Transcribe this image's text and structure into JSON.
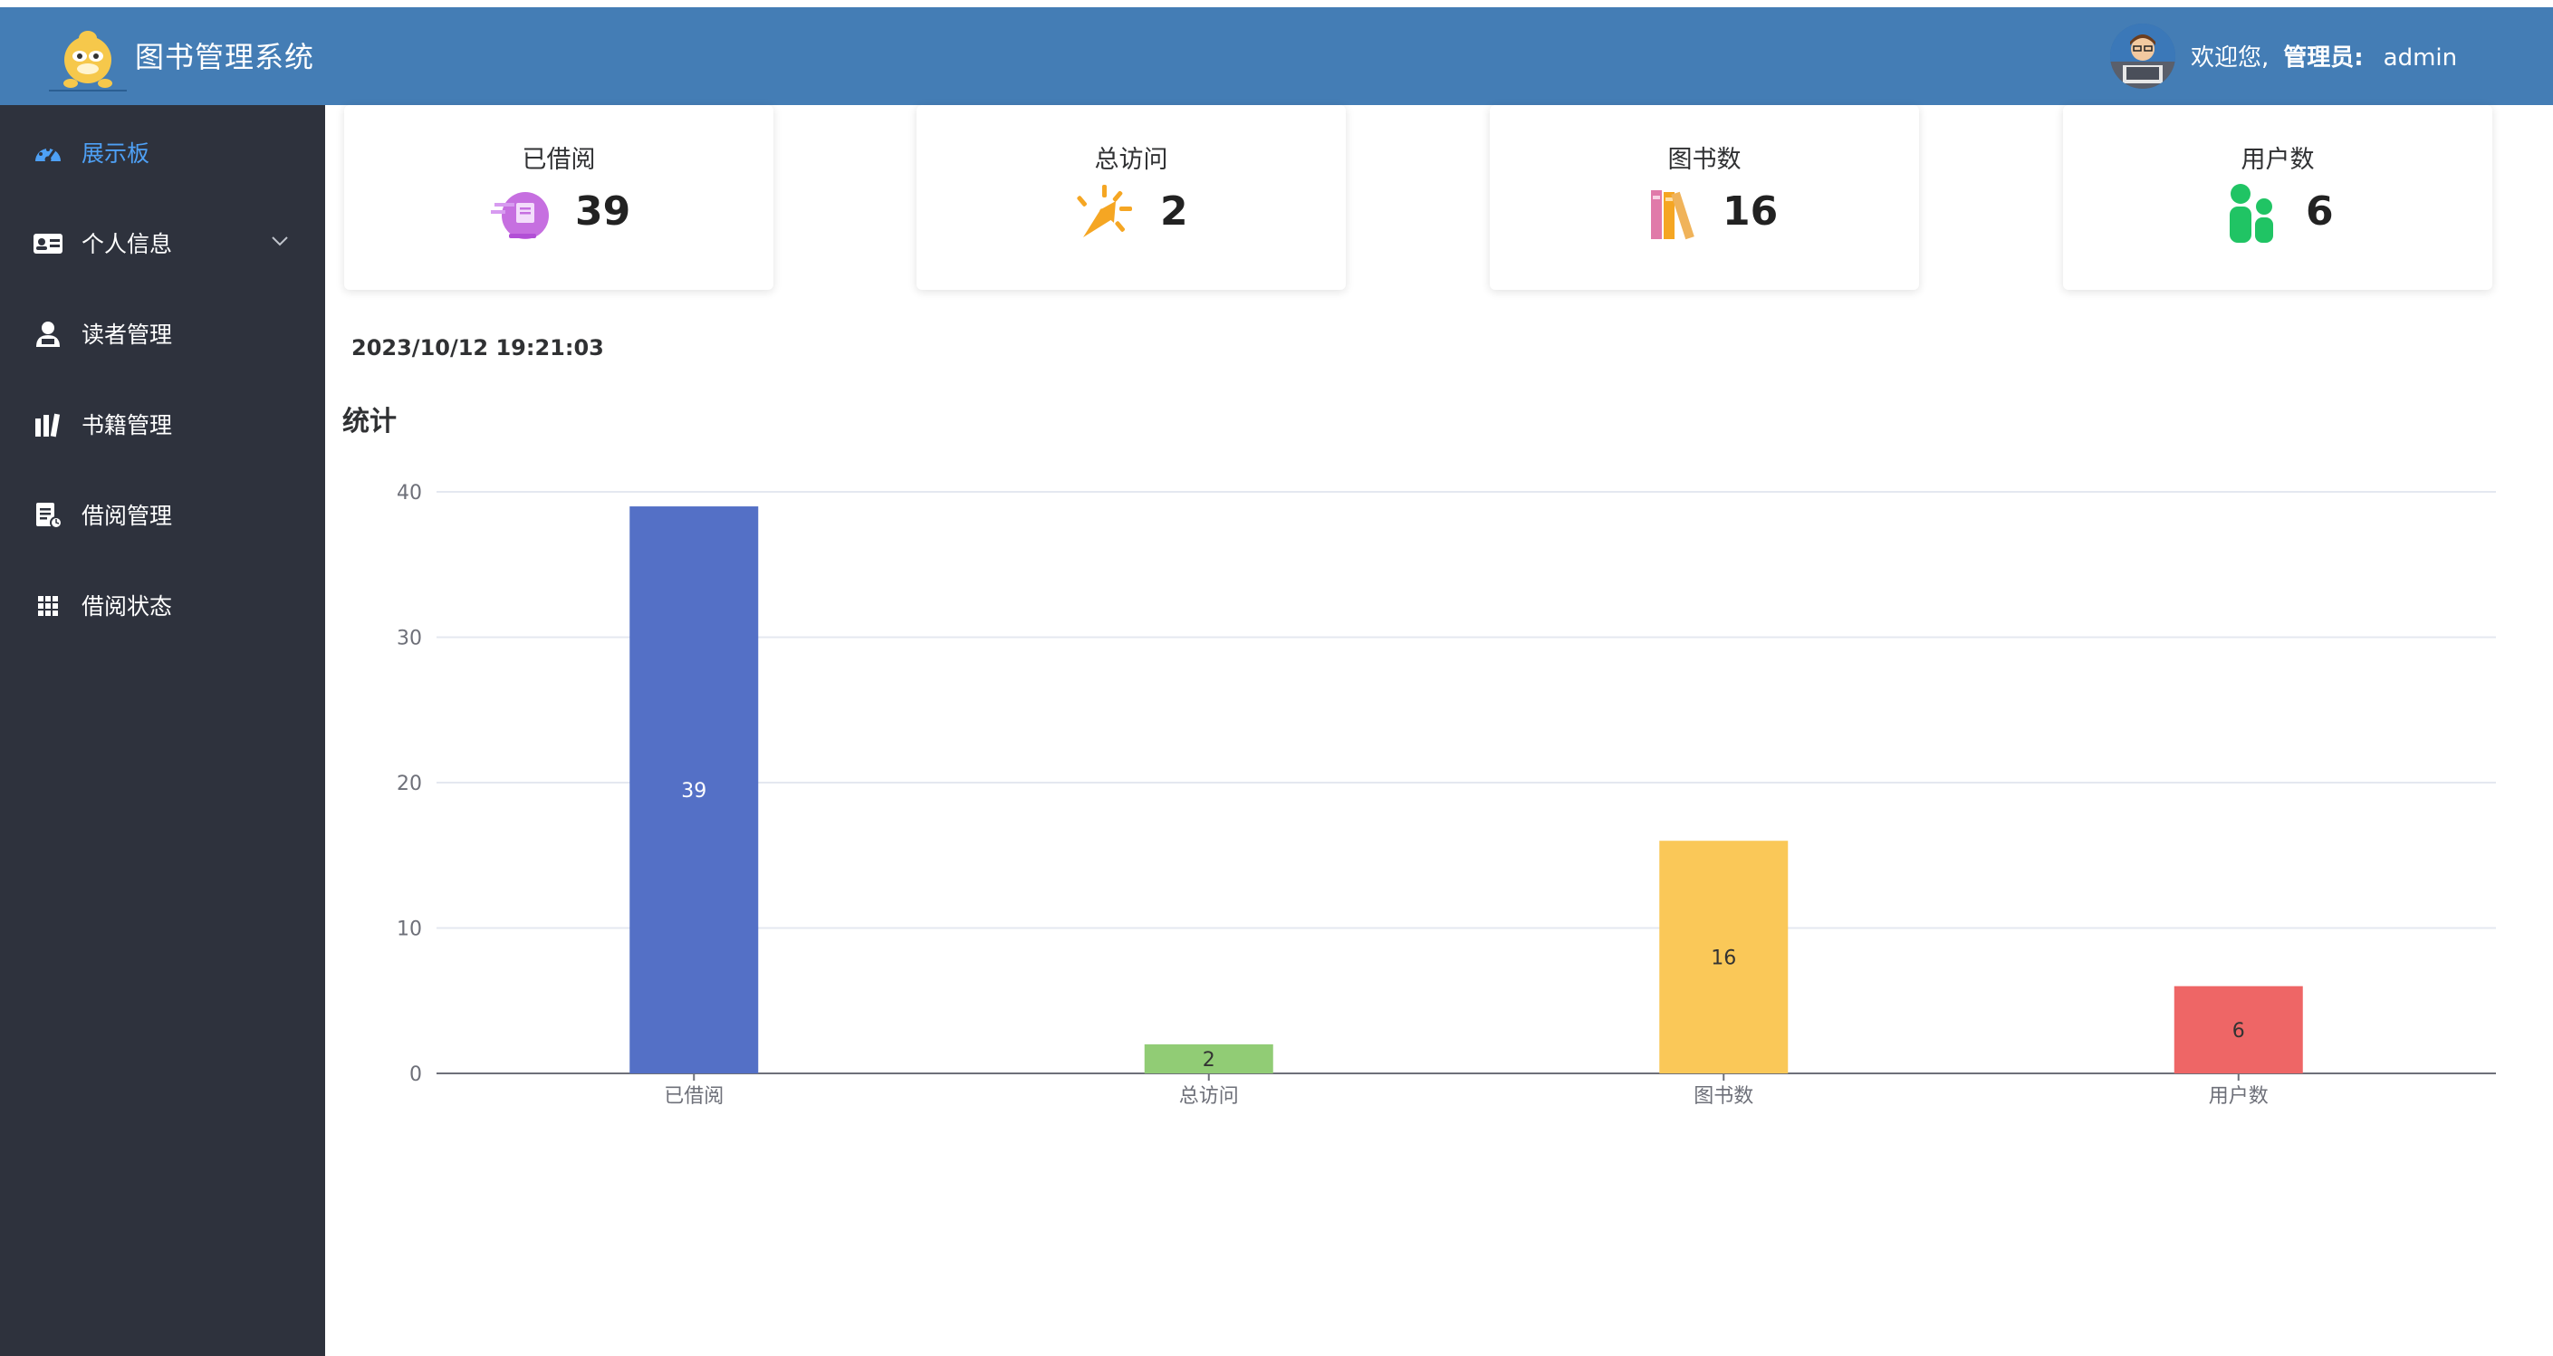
{
  "header": {
    "app_title": "图书管理系统",
    "welcome": "欢迎您,",
    "role_label": "管理员:",
    "username": "admin"
  },
  "sidebar": {
    "items": [
      {
        "label": "展示板",
        "icon": "dashboard-icon",
        "active": true
      },
      {
        "label": "个人信息",
        "icon": "id-card-icon",
        "expandable": true
      },
      {
        "label": "读者管理",
        "icon": "reader-icon"
      },
      {
        "label": "书籍管理",
        "icon": "books-icon"
      },
      {
        "label": "借阅管理",
        "icon": "borrow-doc-icon"
      },
      {
        "label": "借阅状态",
        "icon": "grid-icon"
      }
    ]
  },
  "cards": [
    {
      "title": "已借阅",
      "value": "39",
      "icon": "borrowed-icon"
    },
    {
      "title": "总访问",
      "value": "2",
      "icon": "visits-icon"
    },
    {
      "title": "图书数",
      "value": "16",
      "icon": "books-count-icon"
    },
    {
      "title": "用户数",
      "value": "6",
      "icon": "users-icon"
    }
  ],
  "timestamp": "2023/10/12 19:21:03",
  "section_title": "统计",
  "colors": {
    "header_bg": "#447db5",
    "sidebar_bg": "#2e323d",
    "active_menu": "#4ea0f5"
  },
  "chart_data": {
    "type": "bar",
    "categories": [
      "已借阅",
      "总访问",
      "图书数",
      "用户数"
    ],
    "values": [
      39,
      2,
      16,
      6
    ],
    "colors": [
      "#5470c6",
      "#91cc75",
      "#fac858",
      "#ee6666"
    ],
    "ylim": [
      0,
      40
    ],
    "yticks": [
      0,
      10,
      20,
      30,
      40
    ],
    "grid": true,
    "data_labels": true
  }
}
